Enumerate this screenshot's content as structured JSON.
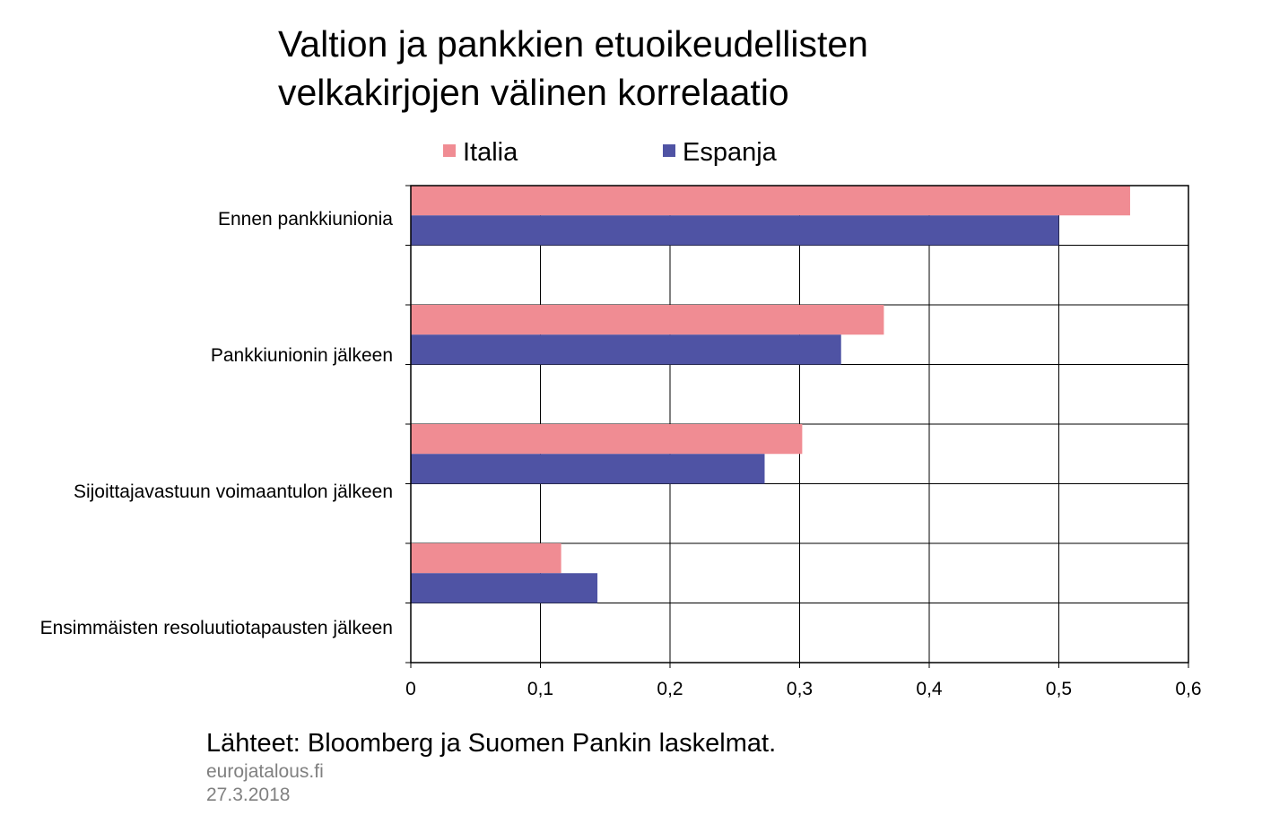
{
  "chart_data": {
    "type": "bar",
    "orientation": "horizontal",
    "title_lines": [
      "Valtion ja pankkien etuoikeudellisten",
      "velkakirjojen välinen korrelaatio"
    ],
    "categories": [
      "Ennen pankkiunionia",
      "Pankkiunionin jälkeen",
      "Sijoittajavastuun voimaantulon jälkeen",
      "Ensimmäisten resoluutiotapausten jälkeen"
    ],
    "series": [
      {
        "name": "Italia",
        "color": "#f08c93",
        "values": [
          0.555,
          0.365,
          0.302,
          0.116
        ]
      },
      {
        "name": "Espanja",
        "color": "#4f53a4",
        "values": [
          0.5,
          0.332,
          0.273,
          0.144
        ]
      }
    ],
    "xlim": [
      0,
      0.6
    ],
    "x_ticks": [
      0,
      0.1,
      0.2,
      0.3,
      0.4,
      0.5,
      0.6
    ],
    "x_tick_labels": [
      "0",
      "0,1",
      "0,2",
      "0,3",
      "0,4",
      "0,5",
      "0,6"
    ],
    "grid": true,
    "legend_position": "top",
    "xlabel": "",
    "ylabel": ""
  },
  "source": "Lähteet: Bloomberg ja Suomen Pankin laskelmat.",
  "footer": {
    "site": "eurojatalous.fi",
    "date": "27.3.2018"
  }
}
